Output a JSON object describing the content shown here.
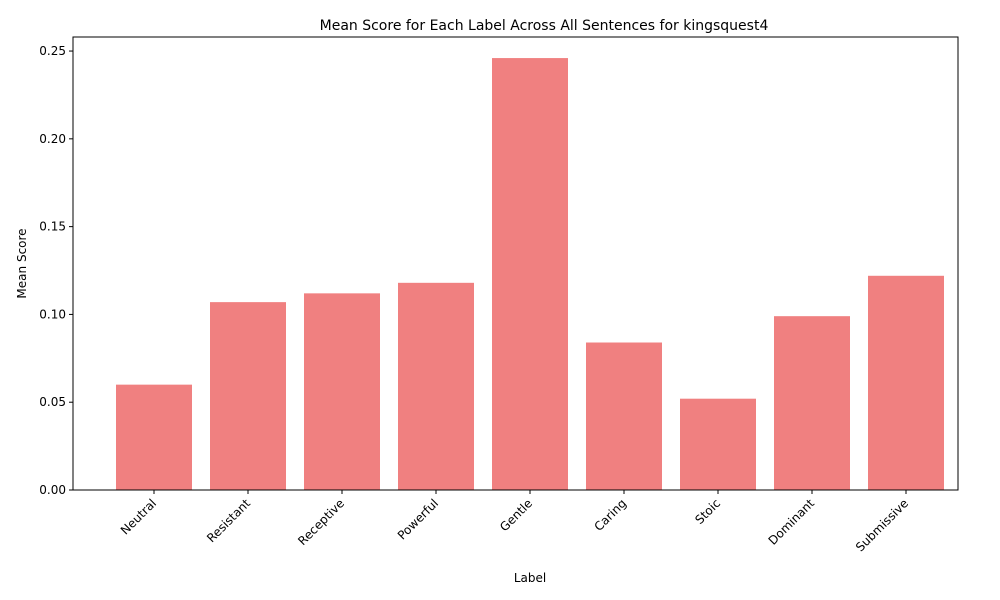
{
  "chart_data": {
    "type": "bar",
    "title": "Mean Score for Each Label Across All Sentences for kingsquest4",
    "xlabel": "Label",
    "ylabel": "Mean Score",
    "categories": [
      "Neutral",
      "Resistant",
      "Receptive",
      "Powerful",
      "Gentle",
      "Caring",
      "Stoic",
      "Dominant",
      "Submissive"
    ],
    "values": [
      0.06,
      0.107,
      0.112,
      0.118,
      0.246,
      0.084,
      0.052,
      0.099,
      0.122
    ],
    "ylim": [
      0,
      0.258
    ],
    "yticks": [
      0.0,
      0.05,
      0.1,
      0.15,
      0.2,
      0.25
    ],
    "ytick_labels": [
      "0.00",
      "0.05",
      "0.10",
      "0.15",
      "0.20",
      "0.25"
    ],
    "bar_color": "#f08080",
    "grid": false,
    "legend": "none"
  }
}
